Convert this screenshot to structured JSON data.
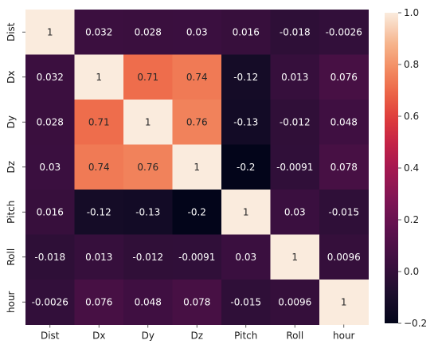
{
  "chart_data": {
    "type": "heatmap",
    "title": "",
    "xlabel": "",
    "ylabel": "",
    "x_labels": [
      "Dist",
      "Dx",
      "Dy",
      "Dz",
      "Pitch",
      "Roll",
      "hour"
    ],
    "y_labels": [
      "Dist",
      "Dx",
      "Dy",
      "Dz",
      "Pitch",
      "Roll",
      "hour"
    ],
    "values": [
      [
        1,
        0.032,
        0.028,
        0.03,
        0.016,
        -0.018,
        -0.0026
      ],
      [
        0.032,
        1,
        0.71,
        0.74,
        -0.12,
        0.013,
        0.076
      ],
      [
        0.028,
        0.71,
        1,
        0.76,
        -0.13,
        -0.012,
        0.048
      ],
      [
        0.03,
        0.74,
        0.76,
        1,
        -0.2,
        -0.0091,
        0.078
      ],
      [
        0.016,
        -0.12,
        -0.13,
        -0.2,
        1,
        0.03,
        -0.015
      ],
      [
        -0.018,
        0.013,
        -0.012,
        -0.0091,
        0.03,
        1,
        0.0096
      ],
      [
        -0.0026,
        0.076,
        0.048,
        0.078,
        -0.015,
        0.0096,
        1
      ]
    ],
    "annotations": [
      [
        "1",
        "0.032",
        "0.028",
        "0.03",
        "0.016",
        "-0.018",
        "-0.0026"
      ],
      [
        "0.032",
        "1",
        "0.71",
        "0.74",
        "-0.12",
        "0.013",
        "0.076"
      ],
      [
        "0.028",
        "0.71",
        "1",
        "0.76",
        "-0.13",
        "-0.012",
        "0.048"
      ],
      [
        "0.03",
        "0.74",
        "0.76",
        "1",
        "-0.2",
        "-0.0091",
        "0.078"
      ],
      [
        "0.016",
        "-0.12",
        "-0.13",
        "-0.2",
        "1",
        "0.03",
        "-0.015"
      ],
      [
        "-0.018",
        "0.013",
        "-0.012",
        "-0.0091",
        "0.03",
        "1",
        "0.0096"
      ],
      [
        "-0.0026",
        "0.076",
        "0.048",
        "0.078",
        "-0.015",
        "0.0096",
        "1"
      ]
    ],
    "colormap": "rocket",
    "vmin": -0.2,
    "vmax": 1.0,
    "colorbar_ticks": [
      -0.2,
      0.0,
      0.2,
      0.4,
      0.6,
      0.8,
      1.0
    ],
    "colorbar_tick_labels": [
      "−0.2",
      "0.0",
      "0.2",
      "0.4",
      "0.6",
      "0.8",
      "1.0"
    ],
    "grid": false,
    "legend": "colorbar-right"
  }
}
